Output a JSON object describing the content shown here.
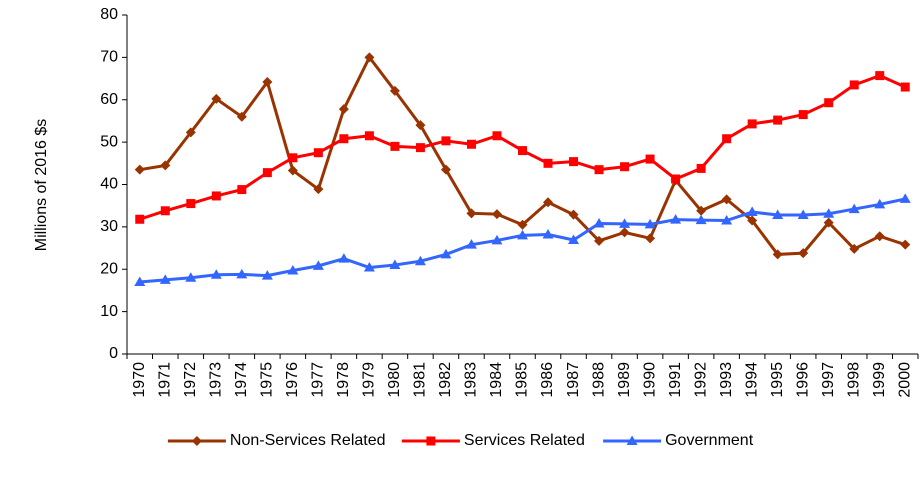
{
  "chart_data": {
    "type": "line",
    "y_label": "Millions of 2016 $s",
    "categories": [
      "1970",
      "1971",
      "1972",
      "1973",
      "1974",
      "1975",
      "1976",
      "1977",
      "1978",
      "1979",
      "1980",
      "1981",
      "1982",
      "1983",
      "1984",
      "1985",
      "1986",
      "1987",
      "1988",
      "1989",
      "1990",
      "1991",
      "1992",
      "1993",
      "1994",
      "1995",
      "1996",
      "1997",
      "1998",
      "1999",
      "2000"
    ],
    "series": [
      {
        "name": "Non-Services Related",
        "color": "#993300",
        "marker": "diamond",
        "values": [
          43.5,
          44.5,
          52.3,
          60.2,
          56,
          64.2,
          43.3,
          38.9,
          57.8,
          70,
          62.1,
          54,
          43.5,
          33.2,
          33,
          30.5,
          35.8,
          32.9,
          26.7,
          28.7,
          27.3,
          41,
          33.8,
          36.5,
          31.5,
          23.5,
          23.8,
          31,
          24.8,
          27.8,
          25.8
        ]
      },
      {
        "name": "Services Related",
        "color": "#ff0000",
        "marker": "square",
        "values": [
          31.8,
          33.8,
          35.5,
          37.3,
          38.8,
          42.8,
          46.3,
          47.5,
          50.8,
          51.5,
          49,
          48.7,
          50.3,
          49.5,
          51.5,
          48,
          45,
          45.4,
          43.5,
          44.2,
          46,
          41.3,
          43.8,
          50.8,
          54.3,
          55.2,
          56.5,
          59.3,
          63.5,
          65.7,
          63
        ]
      },
      {
        "name": "Government",
        "color": "#3366ff",
        "marker": "triangle",
        "values": [
          17,
          17.5,
          18,
          18.7,
          18.8,
          18.5,
          19.7,
          20.8,
          22.5,
          20.4,
          21,
          21.9,
          23.5,
          25.8,
          26.8,
          28,
          28.2,
          26.9,
          30.8,
          30.7,
          30.6,
          31.7,
          31.6,
          31.5,
          33.5,
          32.8,
          32.8,
          33.1,
          34.2,
          35.3,
          36.6
        ]
      }
    ],
    "ylim": [
      0,
      80
    ],
    "yticks": [
      0,
      10,
      20,
      30,
      40,
      50,
      60,
      70,
      80
    ],
    "grid": false,
    "legend": "bottom"
  }
}
